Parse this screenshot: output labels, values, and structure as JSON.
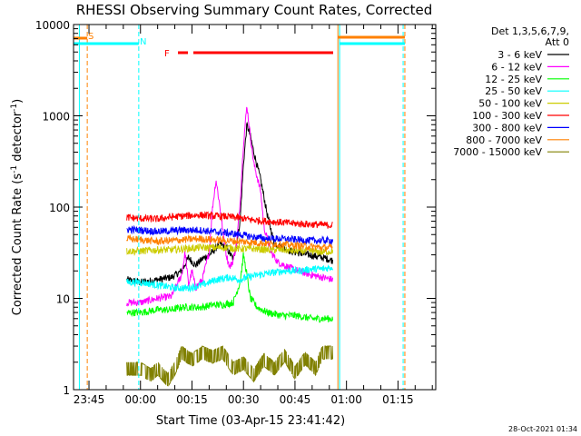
{
  "chart_data": {
    "type": "line",
    "title": "RHESSI Observing Summary Count Rates, Corrected",
    "xlabel": "Start Time (03-Apr-15 23:41:42)",
    "ylabel_main": "Corrected Count Rate (s",
    "ylabel_sup1": "-1",
    "ylabel_mid": " detector",
    "ylabel_sup2": "-1",
    "ylabel_end": ")",
    "y_scale": "log",
    "ylim": [
      1,
      10000
    ],
    "xlim_minutes": [
      -19.5,
      86
    ],
    "grid": false,
    "legend_position": "right",
    "x_ticks": [
      {
        "t": -15,
        "label": "23:45"
      },
      {
        "t": 0,
        "label": "00:00"
      },
      {
        "t": 15,
        "label": "00:15"
      },
      {
        "t": 30,
        "label": "00:30"
      },
      {
        "t": 45,
        "label": "00:45"
      },
      {
        "t": 60,
        "label": "01:00"
      },
      {
        "t": 75,
        "label": "01:15"
      }
    ],
    "y_ticks": [
      {
        "v": 1,
        "label": "1"
      },
      {
        "v": 10,
        "label": "10"
      },
      {
        "v": 100,
        "label": "100"
      },
      {
        "v": 1000,
        "label": "1000"
      },
      {
        "v": 10000,
        "label": "10000"
      }
    ],
    "legend_header": [
      "Det 1,3,5,6,7,9,",
      "Att 0"
    ],
    "series": [
      {
        "name": "3 - 6 keV",
        "color": "#000000",
        "points": [
          [
            -4,
            16
          ],
          [
            0,
            15
          ],
          [
            5,
            16
          ],
          [
            9,
            17
          ],
          [
            12,
            20
          ],
          [
            14,
            28
          ],
          [
            16,
            23
          ],
          [
            18,
            27
          ],
          [
            21,
            32
          ],
          [
            23,
            40
          ],
          [
            25,
            36
          ],
          [
            27,
            27
          ],
          [
            28,
            40
          ],
          [
            29,
            70
          ],
          [
            30,
            300
          ],
          [
            31,
            800
          ],
          [
            32,
            600
          ],
          [
            33,
            400
          ],
          [
            35,
            200
          ],
          [
            37,
            80
          ],
          [
            39,
            40
          ],
          [
            42,
            35
          ],
          [
            45,
            32
          ],
          [
            49,
            30
          ],
          [
            53,
            28
          ],
          [
            56,
            26
          ]
        ]
      },
      {
        "name": "6 - 12 keV",
        "color": "#ff00ff",
        "points": [
          [
            -4,
            9
          ],
          [
            0,
            9
          ],
          [
            5,
            10
          ],
          [
            9,
            10.5
          ],
          [
            12,
            18
          ],
          [
            13,
            32
          ],
          [
            14,
            14
          ],
          [
            15,
            20
          ],
          [
            16,
            13
          ],
          [
            18,
            16
          ],
          [
            20,
            32
          ],
          [
            21,
            100
          ],
          [
            22,
            200
          ],
          [
            23,
            110
          ],
          [
            24,
            55
          ],
          [
            25,
            30
          ],
          [
            26,
            22
          ],
          [
            27,
            26
          ],
          [
            28,
            40
          ],
          [
            29,
            110
          ],
          [
            30,
            500
          ],
          [
            31,
            1300
          ],
          [
            32,
            600
          ],
          [
            33,
            300
          ],
          [
            35,
            150
          ],
          [
            36,
            60
          ],
          [
            38,
            32
          ],
          [
            40,
            25
          ],
          [
            43,
            22
          ],
          [
            46,
            20
          ],
          [
            50,
            18
          ],
          [
            53,
            17
          ],
          [
            56,
            16
          ]
        ]
      },
      {
        "name": "12 - 25 keV",
        "color": "#00ff00",
        "points": [
          [
            -4,
            7
          ],
          [
            0,
            7
          ],
          [
            5,
            7.5
          ],
          [
            9,
            7.5
          ],
          [
            12,
            8
          ],
          [
            15,
            8
          ],
          [
            18,
            8
          ],
          [
            21,
            8.5
          ],
          [
            24,
            8.5
          ],
          [
            27,
            9
          ],
          [
            29,
            15
          ],
          [
            30,
            30
          ],
          [
            31,
            18
          ],
          [
            32,
            10
          ],
          [
            34,
            8
          ],
          [
            37,
            7
          ],
          [
            41,
            6.5
          ],
          [
            45,
            6.5
          ],
          [
            50,
            6
          ],
          [
            56,
            6
          ]
        ]
      },
      {
        "name": "25 - 50 keV",
        "color": "#00ffff",
        "points": [
          [
            -4,
            15
          ],
          [
            0,
            15
          ],
          [
            5,
            14
          ],
          [
            10,
            13
          ],
          [
            14,
            13
          ],
          [
            18,
            14
          ],
          [
            22,
            16
          ],
          [
            26,
            17
          ],
          [
            29,
            16
          ],
          [
            31,
            17
          ],
          [
            34,
            18
          ],
          [
            38,
            19
          ],
          [
            42,
            20
          ],
          [
            46,
            20
          ],
          [
            50,
            21
          ],
          [
            53,
            21
          ],
          [
            56,
            22
          ]
        ]
      },
      {
        "name": "50 - 100 keV",
        "color": "#cccc00",
        "points": [
          [
            -4,
            33
          ],
          [
            0,
            33
          ],
          [
            5,
            34
          ],
          [
            9,
            34
          ],
          [
            13,
            35
          ],
          [
            17,
            36
          ],
          [
            21,
            36
          ],
          [
            25,
            36
          ],
          [
            29,
            35
          ],
          [
            33,
            35
          ],
          [
            37,
            34
          ],
          [
            41,
            34
          ],
          [
            45,
            33
          ],
          [
            49,
            33
          ],
          [
            53,
            32
          ],
          [
            56,
            33
          ]
        ]
      },
      {
        "name": "100 - 300 keV",
        "color": "#ff0000",
        "points": [
          [
            -4,
            77
          ],
          [
            0,
            75
          ],
          [
            5,
            74
          ],
          [
            9,
            78
          ],
          [
            13,
            80
          ],
          [
            17,
            82
          ],
          [
            21,
            80
          ],
          [
            25,
            79
          ],
          [
            29,
            76
          ],
          [
            33,
            72
          ],
          [
            37,
            70
          ],
          [
            41,
            68
          ],
          [
            45,
            66
          ],
          [
            49,
            65
          ],
          [
            53,
            64
          ],
          [
            56,
            63
          ]
        ]
      },
      {
        "name": "300 - 800 keV",
        "color": "#0000ff",
        "points": [
          [
            -4,
            57
          ],
          [
            0,
            56
          ],
          [
            5,
            54
          ],
          [
            9,
            55
          ],
          [
            13,
            56
          ],
          [
            17,
            56
          ],
          [
            21,
            54
          ],
          [
            25,
            52
          ],
          [
            29,
            50
          ],
          [
            33,
            47
          ],
          [
            37,
            45
          ],
          [
            41,
            45
          ],
          [
            45,
            44
          ],
          [
            49,
            43
          ],
          [
            53,
            43
          ],
          [
            56,
            43
          ]
        ]
      },
      {
        "name": "800 - 7000 keV",
        "color": "#ff8000",
        "points": [
          [
            -4,
            45
          ],
          [
            0,
            44
          ],
          [
            5,
            42
          ],
          [
            9,
            43
          ],
          [
            13,
            44
          ],
          [
            17,
            45
          ],
          [
            21,
            44
          ],
          [
            25,
            43
          ],
          [
            29,
            42
          ],
          [
            33,
            41
          ],
          [
            37,
            40
          ],
          [
            41,
            39
          ],
          [
            45,
            38
          ],
          [
            49,
            37
          ],
          [
            53,
            36
          ],
          [
            56,
            36
          ]
        ]
      },
      {
        "name": "7000 - 15000 keV",
        "color": "#808000",
        "points": [
          [
            -4,
            2
          ],
          [
            0,
            2
          ],
          [
            3,
            1.7
          ],
          [
            5,
            2
          ],
          [
            8,
            1.5
          ],
          [
            10,
            2
          ],
          [
            12,
            3
          ],
          [
            15,
            2.5
          ],
          [
            18,
            3
          ],
          [
            21,
            2.7
          ],
          [
            24,
            3
          ],
          [
            27,
            2
          ],
          [
            30,
            2.3
          ],
          [
            33,
            1.7
          ],
          [
            36,
            2.5
          ],
          [
            39,
            2
          ],
          [
            42,
            2.8
          ],
          [
            45,
            1.8
          ],
          [
            48,
            2.6
          ],
          [
            51,
            2
          ],
          [
            53,
            3
          ],
          [
            56,
            3
          ]
        ]
      }
    ],
    "attenuator_flags": [
      {
        "label": "S",
        "color": "#ff8000",
        "t": -15
      },
      {
        "label": "N",
        "color": "#00ffff",
        "t": 0
      }
    ],
    "flare_label": "F",
    "footer_date": "28-Oct-2021 01:34"
  }
}
